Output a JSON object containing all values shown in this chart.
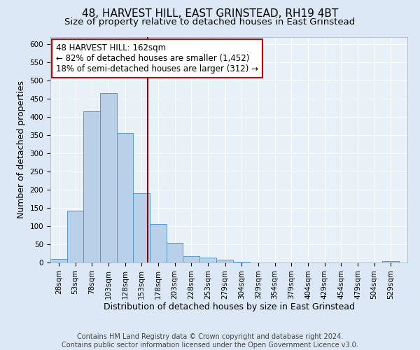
{
  "title": "48, HARVEST HILL, EAST GRINSTEAD, RH19 4BT",
  "subtitle": "Size of property relative to detached houses in East Grinstead",
  "xlabel": "Distribution of detached houses by size in East Grinstead",
  "ylabel": "Number of detached properties",
  "bin_edges": [
    15.5,
    40.5,
    65.5,
    90.5,
    115.5,
    140.5,
    165.5,
    190.5,
    215.5,
    240.5,
    266,
    291,
    316,
    341,
    366,
    391,
    416,
    441,
    466,
    491,
    516,
    541
  ],
  "bar_values": [
    10,
    143,
    415,
    465,
    355,
    190,
    105,
    53,
    18,
    14,
    8,
    2,
    0,
    0,
    0,
    0,
    0,
    0,
    0,
    0,
    3
  ],
  "bar_color": "#b8d0e8",
  "bar_edge_color": "#5599cc",
  "vline_x": 162,
  "vline_color": "#990000",
  "annotation_text": "48 HARVEST HILL: 162sqm\n← 82% of detached houses are smaller (1,452)\n18% of semi-detached houses are larger (312) →",
  "annotation_box_facecolor": "white",
  "annotation_box_edgecolor": "#cc0000",
  "xlim_left": 15.5,
  "xlim_right": 554,
  "ylim_bottom": 0,
  "ylim_top": 620,
  "yticks": [
    0,
    50,
    100,
    150,
    200,
    250,
    300,
    350,
    400,
    450,
    500,
    550,
    600
  ],
  "xtick_labels": [
    "28sqm",
    "53sqm",
    "78sqm",
    "103sqm",
    "128sqm",
    "153sqm",
    "178sqm",
    "203sqm",
    "228sqm",
    "253sqm",
    "279sqm",
    "304sqm",
    "329sqm",
    "354sqm",
    "379sqm",
    "404sqm",
    "429sqm",
    "454sqm",
    "479sqm",
    "504sqm",
    "529sqm"
  ],
  "xtick_positions": [
    28,
    53,
    78,
    103,
    128,
    153,
    178,
    203,
    228,
    253,
    279,
    304,
    329,
    354,
    379,
    404,
    429,
    454,
    479,
    504,
    529
  ],
  "footer_text": "Contains HM Land Registry data © Crown copyright and database right 2024.\nContains public sector information licensed under the Open Government Licence v3.0.",
  "bg_color": "#dce8f5",
  "plot_bg_color": "#e8f0f8",
  "title_fontsize": 11,
  "subtitle_fontsize": 9.5,
  "axis_label_fontsize": 9,
  "tick_fontsize": 7.5,
  "annotation_fontsize": 8.5,
  "footer_fontsize": 7
}
